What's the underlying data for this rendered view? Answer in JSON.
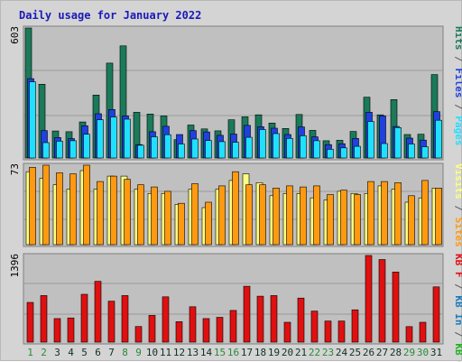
{
  "title": "Daily usage for January 2022",
  "colors": {
    "background": "#d4d4d4",
    "plot_bg": "#c0c0c0",
    "grid": "#9a9a9a",
    "hits": "#1a7a5a",
    "files": "#2040e0",
    "pages": "#20e0ff",
    "visits": "#ffff80",
    "sites": "#ff9a10",
    "kb_in": "#1a7ab8",
    "kb_out": "#20b020",
    "kb_f": "#e01010",
    "weekday_label": "#103020",
    "weekend_label": "#2a8a3a",
    "title": "#1a1ab8"
  },
  "panels": {
    "top": {
      "max_label": "603",
      "legend": [
        {
          "text": "Hits",
          "color": "#1a7a5a"
        },
        {
          "text": " / ",
          "color": "#5a5a5a"
        },
        {
          "text": "Files",
          "color": "#2040e0"
        },
        {
          "text": " / ",
          "color": "#5a5a5a"
        },
        {
          "text": "Pages",
          "color": "#20e0ff"
        }
      ]
    },
    "middle": {
      "max_label": "73",
      "legend": [
        {
          "text": "Visits",
          "color": "#ffff80"
        },
        {
          "text": " / ",
          "color": "#5a5a5a"
        },
        {
          "text": "Sites",
          "color": "#ff9a10"
        }
      ]
    },
    "bottom": {
      "max_label": "1396",
      "legend": [
        {
          "text": "KB F",
          "color": "#e01010"
        },
        {
          "text": " / ",
          "color": "#5a5a5a"
        },
        {
          "text": "KB In",
          "color": "#1a7ab8"
        },
        {
          "text": " / ",
          "color": "#5a5a5a"
        },
        {
          "text": "KB Out",
          "color": "#20b020"
        }
      ]
    }
  },
  "chart_data": {
    "type": "bar",
    "title": "Daily usage for January 2022",
    "categories": [
      "1",
      "2",
      "3",
      "4",
      "5",
      "6",
      "7",
      "8",
      "9",
      "10",
      "11",
      "12",
      "13",
      "14",
      "15",
      "16",
      "17",
      "18",
      "19",
      "20",
      "21",
      "22",
      "23",
      "24",
      "25",
      "26",
      "27",
      "28",
      "29",
      "30",
      "31"
    ],
    "weekend_days": [
      "1",
      "2",
      "8",
      "9",
      "15",
      "16",
      "22",
      "23",
      "29",
      "30"
    ],
    "series": [
      {
        "name": "Hits",
        "panel": "top",
        "values": [
          603,
          342,
          125,
          122,
          167,
          292,
          440,
          520,
          212,
          204,
          195,
          85,
          153,
          135,
          126,
          177,
          191,
          200,
          162,
          137,
          202,
          128,
          80,
          82,
          123,
          282,
          200,
          271,
          109,
          110,
          387
        ]
      },
      {
        "name": "Files",
        "panel": "top",
        "values": [
          368,
          127,
          95,
          90,
          149,
          205,
          225,
          195,
          62,
          122,
          147,
          109,
          127,
          121,
          105,
          111,
          151,
          145,
          138,
          109,
          144,
          98,
          62,
          66,
          91,
          212,
          195,
          146,
          92,
          83,
          215
        ]
      },
      {
        "name": "Pages",
        "panel": "top",
        "values": [
          353,
          71,
          78,
          80,
          110,
          177,
          190,
          180,
          59,
          98,
          108,
          65,
          88,
          81,
          76,
          73,
          96,
          132,
          113,
          91,
          103,
          80,
          40,
          47,
          54,
          169,
          67,
          141,
          65,
          52,
          175
        ]
      },
      {
        "name": "Visits",
        "panel": "middle",
        "values": [
          67,
          61,
          55,
          51,
          68,
          51,
          63,
          63,
          51,
          47,
          47,
          37,
          51,
          34,
          51,
          59,
          65,
          57,
          45,
          47,
          47,
          43,
          41,
          49,
          47,
          47,
          54,
          51,
          39,
          43,
          52
        ]
      },
      {
        "name": "Sites",
        "panel": "middle",
        "values": [
          71,
          73,
          66,
          65,
          73,
          58,
          63,
          60,
          55,
          53,
          49,
          38,
          56,
          39,
          54,
          67,
          55,
          55,
          52,
          54,
          53,
          54,
          46,
          50,
          46,
          58,
          58,
          57,
          45,
          59,
          52
        ]
      },
      {
        "name": "KB F",
        "panel": "bottom",
        "values": [
          640,
          750,
          380,
          390,
          770,
          980,
          660,
          750,
          252,
          430,
          730,
          330,
          570,
          380,
          400,
          510,
          900,
          740,
          750,
          320,
          710,
          500,
          340,
          340,
          520,
          1396,
          1330,
          1130,
          250,
          320,
          890
        ]
      }
    ],
    "panel_max": {
      "top": 603,
      "middle": 73,
      "bottom": 1396
    }
  }
}
